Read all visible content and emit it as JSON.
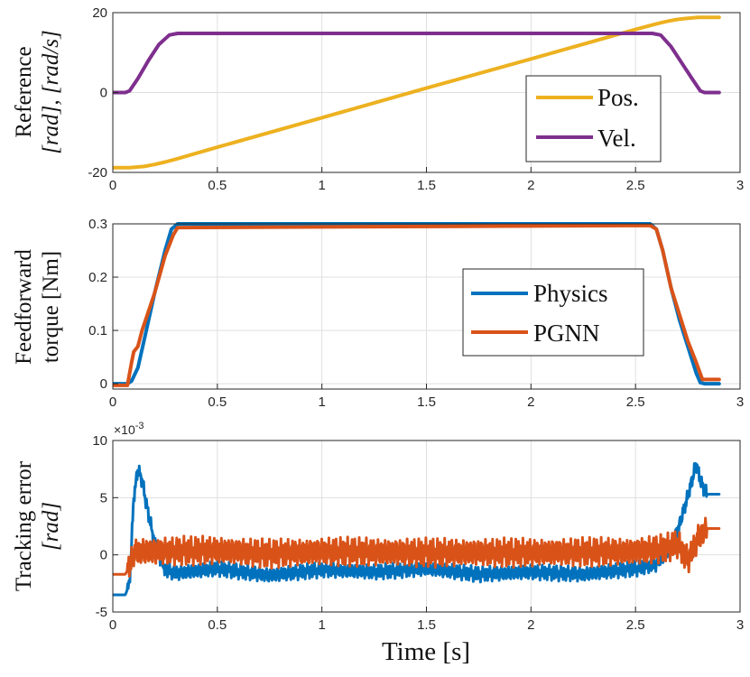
{
  "xlabel": "Time [s]",
  "colors": {
    "pos": "#EDB120",
    "vel": "#7E2F8E",
    "physics": "#0072BD",
    "pgnn": "#D95319"
  },
  "chart_data": [
    {
      "type": "line",
      "name": "reference",
      "ylabel_line1": "Reference",
      "ylabel_line2": "[rad], [rad/s]",
      "xlim": [
        0,
        3
      ],
      "ylim": [
        -20,
        20
      ],
      "xticks": [
        0,
        0.5,
        1,
        1.5,
        2,
        2.5,
        3
      ],
      "xtick_labels": [
        "0",
        "0.5",
        "1",
        "1.5",
        "2",
        "2.5",
        "3"
      ],
      "yticks": [
        -20,
        0,
        20
      ],
      "ytick_labels": [
        "-20",
        "0",
        "20"
      ],
      "legend": [
        "Pos.",
        "Vel."
      ],
      "legend_position": "lower-right",
      "series": [
        {
          "name": "Pos.",
          "color_key": "pos",
          "x": [
            0,
            0.08,
            0.15,
            0.2,
            0.25,
            0.3,
            0.5,
            1.0,
            1.5,
            2.0,
            2.5,
            2.6,
            2.65,
            2.7,
            2.75,
            2.8,
            2.9
          ],
          "y": [
            -18.8,
            -18.8,
            -18.5,
            -18.0,
            -17.4,
            -16.7,
            -13.7,
            -6.3,
            1.1,
            8.4,
            15.8,
            17.2,
            17.8,
            18.3,
            18.6,
            18.8,
            18.8
          ]
        },
        {
          "name": "Vel.",
          "color_key": "vel",
          "x": [
            0,
            0.06,
            0.08,
            0.12,
            0.17,
            0.22,
            0.27,
            0.31,
            2.58,
            2.62,
            2.67,
            2.72,
            2.77,
            2.81,
            2.83,
            2.9
          ],
          "y": [
            0,
            0,
            0.4,
            3.5,
            8.0,
            12.0,
            14.4,
            14.8,
            14.8,
            14.4,
            11.5,
            7.5,
            3.5,
            0.4,
            0,
            0
          ]
        }
      ]
    },
    {
      "type": "line",
      "name": "feedforward",
      "ylabel_line1": "Feedforward",
      "ylabel_line2": "torque [Nm]",
      "xlim": [
        0,
        3
      ],
      "ylim": [
        -0.01,
        0.3
      ],
      "xticks": [
        0,
        0.5,
        1,
        1.5,
        2,
        2.5,
        3
      ],
      "xtick_labels": [
        "0",
        "0.5",
        "1",
        "1.5",
        "2",
        "2.5",
        "3"
      ],
      "yticks": [
        0,
        0.1,
        0.2,
        0.3
      ],
      "ytick_labels": [
        "0",
        "0.1",
        "0.2",
        "0.3"
      ],
      "legend": [
        "Physics",
        "PGNN"
      ],
      "legend_position": "right",
      "series": [
        {
          "name": "Physics",
          "color_key": "physics",
          "x": [
            0,
            0.07,
            0.09,
            0.12,
            0.16,
            0.2,
            0.25,
            0.28,
            0.31,
            2.57,
            2.6,
            2.63,
            2.67,
            2.71,
            2.75,
            2.79,
            2.81,
            2.83,
            2.9
          ],
          "y": [
            0,
            0,
            0.005,
            0.03,
            0.1,
            0.17,
            0.25,
            0.29,
            0.3,
            0.3,
            0.29,
            0.25,
            0.18,
            0.12,
            0.07,
            0.02,
            0.002,
            0,
            0
          ]
        },
        {
          "name": "PGNN",
          "color_key": "pgnn",
          "x": [
            0,
            0.05,
            0.07,
            0.09,
            0.1,
            0.12,
            0.14,
            0.2,
            0.25,
            0.29,
            0.31,
            2.57,
            2.6,
            2.63,
            2.67,
            2.71,
            2.75,
            2.79,
            2.82,
            2.9
          ],
          "y": [
            -0.003,
            -0.003,
            -0.003,
            0.04,
            0.06,
            0.07,
            0.1,
            0.17,
            0.24,
            0.28,
            0.293,
            0.297,
            0.29,
            0.25,
            0.18,
            0.13,
            0.08,
            0.04,
            0.008,
            0.008
          ]
        }
      ]
    },
    {
      "type": "line",
      "name": "tracking",
      "ylabel_line1": "Tracking error",
      "ylabel_line2": "[rad]",
      "exponent_label": "×10",
      "exponent_power": "-3",
      "xlim": [
        0,
        3
      ],
      "ylim": [
        -5,
        10
      ],
      "xticks": [
        0,
        0.5,
        1,
        1.5,
        2,
        2.5,
        3
      ],
      "xtick_labels": [
        "0",
        "0.5",
        "1",
        "1.5",
        "2",
        "2.5",
        "3"
      ],
      "yticks": [
        -5,
        0,
        5,
        10
      ],
      "ytick_labels": [
        "-5",
        "0",
        "5",
        "10"
      ],
      "series": [
        {
          "name": "Physics",
          "color_key": "physics",
          "x": [
            0,
            0.06,
            0.08,
            0.1,
            0.12,
            0.14,
            0.16,
            0.2,
            0.25,
            0.3,
            0.5,
            0.75,
            1.0,
            1.25,
            1.5,
            1.75,
            2.0,
            2.25,
            2.5,
            2.6,
            2.66,
            2.7,
            2.74,
            2.77,
            2.79,
            2.81,
            2.84,
            2.9
          ],
          "y": [
            -3.5,
            -3.5,
            -2.5,
            5.0,
            7.5,
            6.5,
            4.5,
            1.0,
            -1.3,
            -1.6,
            -1.2,
            -1.8,
            -1.3,
            -1.5,
            -1.2,
            -1.7,
            -1.5,
            -1.7,
            -1.2,
            -0.8,
            0.5,
            2.0,
            4.5,
            6.5,
            8.0,
            6.5,
            5.3,
            5.3
          ],
          "noise": 0.7
        },
        {
          "name": "PGNN",
          "color_key": "pgnn",
          "x": [
            0,
            0.06,
            0.08,
            0.1,
            0.13,
            0.2,
            0.5,
            0.75,
            1.0,
            1.5,
            2.0,
            2.5,
            2.65,
            2.7,
            2.75,
            2.8,
            2.84,
            2.9
          ],
          "y": [
            -1.7,
            -1.7,
            -1.0,
            0.2,
            0.3,
            0.3,
            0.4,
            0.1,
            0.3,
            0.2,
            0.2,
            0.3,
            0.6,
            1.0,
            -0.5,
            1.5,
            2.3,
            2.3
          ],
          "noise": 1.3
        }
      ]
    }
  ]
}
